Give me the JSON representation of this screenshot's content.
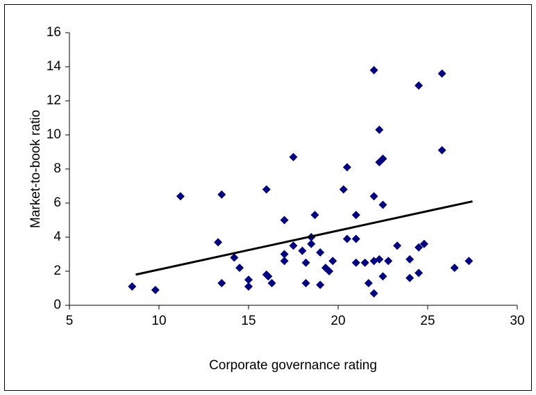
{
  "chart_data": {
    "type": "scatter",
    "xlabel": "Corporate governance rating",
    "ylabel": "Market-to-book ratio",
    "x": [
      8.5,
      9.8,
      11.2,
      13.3,
      13.5,
      13.5,
      14.2,
      14.5,
      15.0,
      15.0,
      16.0,
      16.0,
      16.1,
      16.3,
      17.0,
      17.0,
      17.0,
      17.5,
      17.5,
      18.0,
      18.2,
      18.2,
      18.5,
      18.5,
      18.7,
      19.0,
      19.0,
      19.3,
      19.5,
      19.7,
      20.3,
      20.5,
      20.5,
      21.0,
      21.0,
      21.0,
      21.5,
      21.7,
      22.0,
      22.0,
      22.0,
      22.0,
      22.3,
      22.3,
      22.3,
      22.5,
      22.5,
      22.5,
      22.8,
      23.3,
      24.0,
      24.0,
      24.5,
      24.5,
      24.5,
      24.8,
      25.8,
      25.8,
      26.5,
      27.3
    ],
    "values": [
      1.1,
      0.9,
      6.4,
      3.7,
      6.5,
      1.3,
      2.8,
      2.2,
      1.5,
      1.1,
      6.8,
      1.8,
      1.7,
      1.3,
      5.0,
      3.0,
      2.6,
      8.7,
      3.5,
      3.2,
      2.5,
      1.3,
      4.0,
      3.6,
      5.3,
      3.1,
      1.2,
      2.2,
      2.0,
      2.6,
      6.8,
      8.1,
      3.9,
      5.3,
      3.9,
      2.5,
      2.5,
      1.3,
      13.8,
      6.4,
      2.6,
      0.7,
      10.3,
      8.4,
      2.7,
      8.6,
      5.9,
      1.7,
      2.6,
      3.5,
      2.7,
      1.6,
      12.9,
      3.4,
      1.9,
      3.6,
      13.6,
      9.1,
      2.2,
      2.6
    ],
    "color": "#000080",
    "trendline": {
      "x": [
        8.7,
        27.5
      ],
      "values": [
        1.8,
        6.1
      ],
      "color": "#000000"
    },
    "xlim": [
      5,
      30
    ],
    "xticks": [
      5,
      10,
      15,
      20,
      25,
      30
    ],
    "ylim": [
      0,
      16
    ],
    "yticks": [
      0,
      2,
      4,
      6,
      8,
      10,
      12,
      14,
      16
    ],
    "grid": false
  }
}
